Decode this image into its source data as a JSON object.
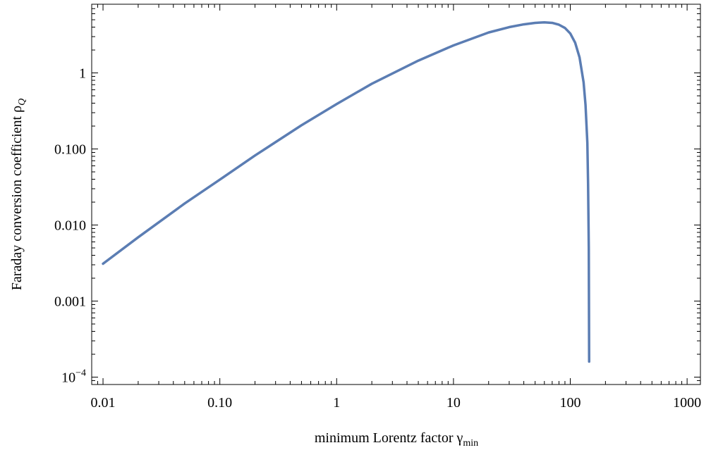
{
  "chart_data": {
    "type": "line",
    "title": "",
    "xlabel": "minimum Lorentz factor γ",
    "xlabel_sub": "min",
    "ylabel": "Faraday conversion coefficient ρ",
    "ylabel_sub": "Q",
    "xscale": "log",
    "yscale": "log",
    "xlim": [
      0.008,
      1300
    ],
    "ylim": [
      8e-05,
      8
    ],
    "grid": false,
    "legend": "none",
    "color": "#5b7db3",
    "x_ticks": [
      {
        "value": 0.01,
        "label": "0.01"
      },
      {
        "value": 0.1,
        "label": "0.10"
      },
      {
        "value": 1,
        "label": "1"
      },
      {
        "value": 10,
        "label": "10"
      },
      {
        "value": 100,
        "label": "100"
      },
      {
        "value": 1000,
        "label": "1000"
      }
    ],
    "y_ticks": [
      {
        "value": 0.0001,
        "label": "10",
        "sup": "−4"
      },
      {
        "value": 0.001,
        "label": "0.001"
      },
      {
        "value": 0.01,
        "label": "0.010"
      },
      {
        "value": 0.1,
        "label": "0.100"
      },
      {
        "value": 1,
        "label": "1"
      }
    ],
    "series": [
      {
        "x": [
          0.01,
          0.02,
          0.05,
          0.1,
          0.2,
          0.5,
          1,
          2,
          5,
          10,
          20,
          30,
          40,
          50,
          60,
          70,
          80,
          90,
          100,
          110,
          120,
          130,
          135,
          140,
          142,
          144,
          145
        ],
        "y": [
          0.0031,
          0.0069,
          0.0192,
          0.0395,
          0.082,
          0.205,
          0.39,
          0.72,
          1.45,
          2.3,
          3.4,
          4.0,
          4.35,
          4.55,
          4.62,
          4.55,
          4.3,
          3.9,
          3.3,
          2.5,
          1.6,
          0.75,
          0.38,
          0.12,
          0.035,
          0.005,
          0.00016
        ]
      }
    ]
  }
}
